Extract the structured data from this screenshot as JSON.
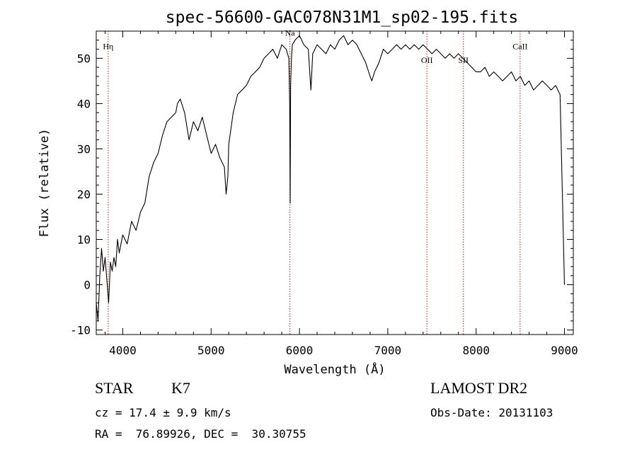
{
  "chart_data": {
    "type": "line",
    "title": "spec-56600-GAC078N31M1_sp02-195.fits",
    "xlabel": "Wavelength (Å)",
    "ylabel": "Flux (relative)",
    "xlim": [
      3700,
      9100
    ],
    "ylim": [
      -11,
      56
    ],
    "xticks": [
      4000,
      5000,
      6000,
      7000,
      8000,
      9000
    ],
    "yticks": [
      -10,
      0,
      10,
      20,
      30,
      40,
      50
    ],
    "x_minor_step": 200,
    "y_minor_step": 2,
    "grid": false,
    "line_color": "#000000",
    "marker_color": "#b22222",
    "series": [
      {
        "x": [
          3700,
          3720,
          3740,
          3760,
          3780,
          3800,
          3820,
          3840,
          3860,
          3880,
          3900,
          3920,
          3940,
          3960,
          3980,
          4000,
          4050,
          4100,
          4150,
          4200,
          4250,
          4300,
          4350,
          4400,
          4450,
          4500,
          4550,
          4600,
          4620,
          4650,
          4700,
          4750,
          4800,
          4850,
          4900,
          4950,
          5000,
          5050,
          5100,
          5150,
          5170,
          5190,
          5200,
          5250,
          5300,
          5350,
          5400,
          5450,
          5500,
          5550,
          5600,
          5650,
          5700,
          5750,
          5800,
          5850,
          5880,
          5890,
          5895,
          5900,
          5910,
          5920,
          5950,
          6000,
          6050,
          6100,
          6130,
          6150,
          6200,
          6250,
          6300,
          6350,
          6400,
          6450,
          6500,
          6550,
          6600,
          6650,
          6700,
          6750,
          6800,
          6820,
          6850,
          6900,
          6950,
          7000,
          7050,
          7100,
          7150,
          7200,
          7250,
          7300,
          7350,
          7400,
          7450,
          7500,
          7550,
          7600,
          7650,
          7700,
          7750,
          7800,
          7850,
          7900,
          7950,
          8000,
          8050,
          8100,
          8150,
          8200,
          8250,
          8300,
          8350,
          8400,
          8450,
          8500,
          8550,
          8600,
          8650,
          8700,
          8750,
          8800,
          8850,
          8900,
          8950,
          9000
        ],
        "y": [
          -4,
          -8,
          2,
          8,
          3,
          6,
          1,
          -4,
          5,
          3,
          6,
          4,
          10,
          7,
          9,
          11,
          9,
          14,
          12,
          16,
          18,
          24,
          27,
          29,
          33,
          36,
          37,
          38,
          40,
          41,
          38,
          32,
          36,
          34,
          37,
          33,
          29,
          31,
          28,
          26,
          20,
          24,
          31,
          38,
          42,
          43,
          44,
          46,
          47,
          48,
          50,
          51,
          52,
          50,
          53,
          52,
          50,
          40,
          18,
          44,
          50,
          53,
          54,
          55,
          53,
          52,
          43,
          51,
          53,
          52,
          51,
          53,
          52,
          54,
          55,
          53,
          54,
          53,
          51,
          49,
          46,
          45,
          47,
          49,
          52,
          51,
          52,
          53,
          52,
          53,
          52,
          53,
          52,
          53,
          52,
          51,
          52,
          51,
          50,
          51,
          50,
          51,
          50,
          49,
          48,
          47,
          47,
          48,
          46,
          47,
          46,
          45,
          46,
          47,
          45,
          46,
          44,
          45,
          43,
          44,
          45,
          44,
          43,
          44,
          42,
          0
        ]
      }
    ],
    "lines": [
      {
        "label": "Hη",
        "x": 3835,
        "label_y": 52
      },
      {
        "label": "Na",
        "x": 5892,
        "label_y": 55
      },
      {
        "label": "OII",
        "x": 7443,
        "label_y": 49
      },
      {
        "label": "SII",
        "x": 7856,
        "label_y": 49
      },
      {
        "label": "CaII",
        "x": 8498,
        "label_y": 52
      }
    ]
  },
  "info": {
    "object_type": "STAR",
    "subclass": "K7",
    "survey": "LAMOST DR2",
    "cz": "cz = 17.4 ± 9.9 km/s",
    "obs_date": "Obs-Date: 20131103",
    "radec": "RA =  76.89926, DEC =  30.30755"
  }
}
